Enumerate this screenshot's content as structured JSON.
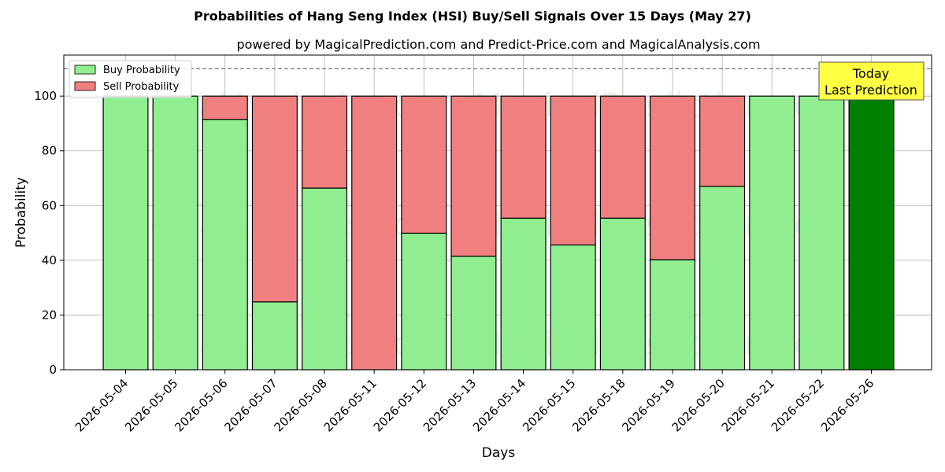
{
  "chart_data": {
    "type": "bar",
    "stacked": true,
    "title": "Probabilities of Hang Seng Index (HSI) Buy/Sell Signals Over 15 Days (May 27)",
    "subtitle": "powered by MagicalPrediction.com and Predict-Price.com and MagicalAnalysis.com",
    "xlabel": "Days",
    "ylabel": "Probability",
    "ylim": [
      0,
      115
    ],
    "yticks": [
      0,
      20,
      40,
      60,
      80,
      100
    ],
    "reference_line": 110,
    "grid": true,
    "legend_position": "top-left",
    "categories": [
      "2026-05-04",
      "2026-05-05",
      "2026-05-06",
      "2026-05-07",
      "2026-05-08",
      "2026-05-11",
      "2026-05-12",
      "2026-05-13",
      "2026-05-14",
      "2026-05-15",
      "2026-05-18",
      "2026-05-19",
      "2026-05-20",
      "2026-05-21",
      "2026-05-22",
      "2026-05-26"
    ],
    "series": [
      {
        "name": "Buy Probability",
        "color": "#90ee90",
        "values": [
          100,
          100,
          91.5,
          24.8,
          66.4,
          0,
          49.9,
          41.5,
          55.4,
          45.6,
          55.4,
          40.2,
          67.0,
          100,
          100,
          100
        ]
      },
      {
        "name": "Sell Probability",
        "color": "#f08080",
        "values": [
          0,
          0,
          8.5,
          75.2,
          33.6,
          100,
          50.1,
          58.5,
          44.6,
          54.4,
          44.6,
          59.8,
          33.0,
          0,
          0,
          0
        ]
      }
    ],
    "highlight_index": 15,
    "highlight_color": "#008000",
    "annotation": {
      "lines": [
        "Today",
        "Last Prediction"
      ],
      "position": "top-right",
      "bg": "#ffff44"
    },
    "watermarks": [
      "MagicalAnalysis.com",
      "MagicalPrediction.com"
    ]
  }
}
